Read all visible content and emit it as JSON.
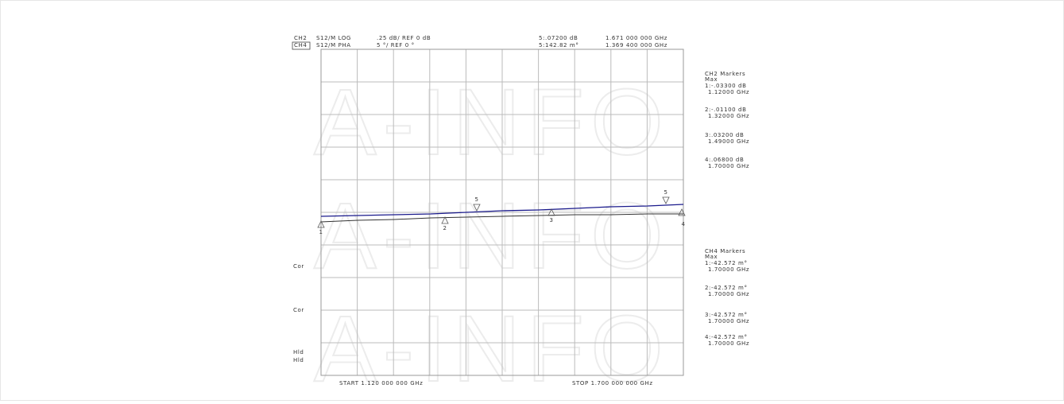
{
  "header": {
    "row1": [
      "CH2",
      "S12/M LOG",
      ".25 dB/ REF 0 dB",
      "5:.07200 dB",
      "1.671 000 000 GHz"
    ],
    "row2": [
      "CH4",
      "S12/M PHA",
      "5 °/ REF 0 °",
      "5:142.82 m°",
      "1.369 400 000 GHz"
    ]
  },
  "side_labels": [
    "Cor",
    "Cor",
    "Hld",
    "Hld"
  ],
  "start": "START 1.120 000 000 GHz",
  "stop": "STOP 1.700 000 000 GHz",
  "watermark": "A-INFO",
  "trace_markers": [
    "1",
    "2",
    "3",
    "4",
    "5",
    "5"
  ],
  "ch2_markers": {
    "title": "CH2 Markers",
    "mode": "Max",
    "entries": [
      [
        "1:-.03300 dB",
        "1.12000 GHz"
      ],
      [
        "2:-.01100 dB",
        "1.32000 GHz"
      ],
      [
        "3:.03200 dB",
        "1.49000 GHz"
      ],
      [
        "4:.06800 dB",
        "1.70000 GHz"
      ]
    ]
  },
  "ch4_markers": {
    "title": "CH4 Markers",
    "mode": "Max",
    "entries": [
      [
        "1:-42.572 m°",
        "1.70000 GHz"
      ],
      [
        "2:-42.572 m°",
        "1.70000 GHz"
      ],
      [
        "3:-42.572 m°",
        "1.70000 GHz"
      ],
      [
        "4:-42.572 m°",
        "1.70000 GHz"
      ]
    ]
  }
}
